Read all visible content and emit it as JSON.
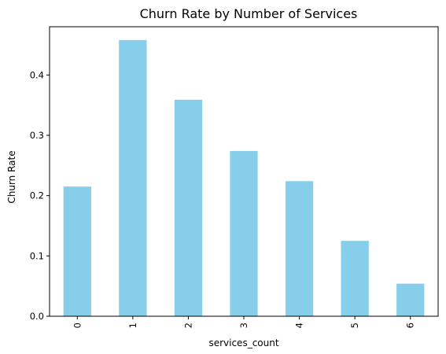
{
  "chart_data": {
    "type": "bar",
    "title": "Churn Rate by Number of Services",
    "xlabel": "services_count",
    "ylabel": "Churn Rate",
    "categories": [
      "0",
      "1",
      "2",
      "3",
      "4",
      "5",
      "6"
    ],
    "values": [
      0.215,
      0.458,
      0.359,
      0.274,
      0.224,
      0.125,
      0.054
    ],
    "ylim": [
      0,
      0.48
    ],
    "yticks": [
      0.0,
      0.1,
      0.2,
      0.3,
      0.4
    ],
    "ytick_labels": [
      "0.0",
      "0.1",
      "0.2",
      "0.3",
      "0.4"
    ],
    "bar_color": "#87CEEB",
    "grid": false,
    "legend": "none",
    "xtick_rotation": "vertical"
  }
}
